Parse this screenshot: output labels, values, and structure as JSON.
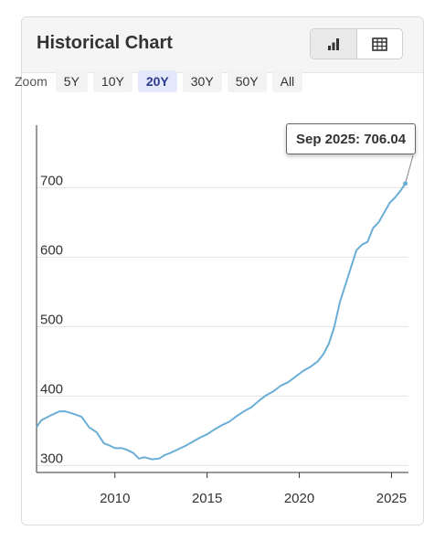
{
  "header": {
    "title": "Historical Chart"
  },
  "view_toggle": {
    "chart_icon": "bar-chart-icon",
    "table_icon": "table-icon"
  },
  "zoom": {
    "label": "Zoom",
    "options": [
      "5Y",
      "10Y",
      "20Y",
      "30Y",
      "50Y",
      "All"
    ],
    "selected": "20Y"
  },
  "tooltip": {
    "text": "Sep 2025: 706.04"
  },
  "colors": {
    "line": "#6aaed6",
    "active_zoom_bg": "#e4e8fb"
  },
  "chart_data": {
    "type": "line",
    "title": "",
    "xlabel": "",
    "ylabel": "",
    "xlim": [
      2005.75,
      2025.92
    ],
    "ylim": [
      290,
      790
    ],
    "x_ticks": [
      2010,
      2015,
      2020,
      2025
    ],
    "x_tick_labels": [
      "2010",
      "2015",
      "2020",
      "2025"
    ],
    "y_ticks": [
      300,
      400,
      500,
      600,
      700
    ],
    "y_tick_labels": [
      "300",
      "400",
      "500",
      "600",
      "700"
    ],
    "grid": {
      "horizontal": true,
      "vertical": false
    },
    "series": [
      {
        "x": [
          2005.75,
          2006.0,
          2006.5,
          2007.0,
          2007.3,
          2007.8,
          2008.2,
          2008.6,
          2009.0,
          2009.4,
          2009.7,
          2010.0,
          2010.4,
          2010.7,
          2011.0,
          2011.3,
          2011.6,
          2012.0,
          2012.4,
          2012.7,
          2013.0,
          2013.4,
          2013.8,
          2014.2,
          2014.6,
          2015.0,
          2015.4,
          2015.8,
          2016.2,
          2016.6,
          2017.0,
          2017.4,
          2017.8,
          2018.2,
          2018.6,
          2019.0,
          2019.4,
          2019.8,
          2020.2,
          2020.6,
          2021.0,
          2021.3,
          2021.6,
          2021.9,
          2022.2,
          2022.5,
          2022.8,
          2023.1,
          2023.4,
          2023.7,
          2024.0,
          2024.3,
          2024.6,
          2024.9,
          2025.2,
          2025.5,
          2025.75
        ],
        "y": [
          355,
          365,
          372,
          378,
          378,
          374,
          370,
          355,
          348,
          332,
          329,
          325,
          325,
          322,
          318,
          310,
          312,
          309,
          310,
          315,
          318,
          323,
          328,
          334,
          340,
          345,
          352,
          358,
          363,
          371,
          378,
          384,
          393,
          401,
          407,
          415,
          420,
          428,
          436,
          442,
          450,
          460,
          475,
          500,
          535,
          560,
          585,
          610,
          618,
          622,
          642,
          650,
          664,
          678,
          686,
          696,
          706.04
        ]
      }
    ]
  }
}
